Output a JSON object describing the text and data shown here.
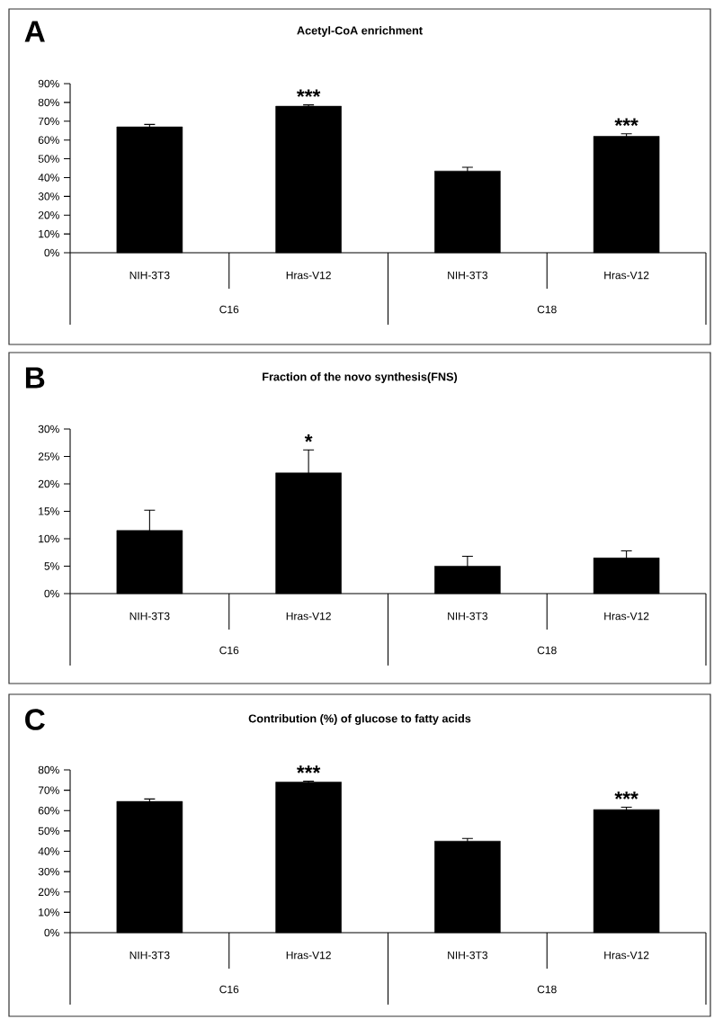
{
  "chart_data": [
    {
      "type": "bar",
      "title": "Acetyl-CoA enrichment",
      "categories": [
        "NIH-3T3",
        "Hras-V12",
        "NIH-3T3",
        "Hras-V12"
      ],
      "values": [
        67,
        78,
        43.5,
        62
      ],
      "errors": [
        1.3,
        0.7,
        2,
        1.3
      ],
      "color": "#000000",
      "ylim": [
        0,
        90
      ],
      "yticks": [
        {
          "value": 0,
          "label": "0%"
        },
        {
          "value": 10,
          "label": "10%"
        },
        {
          "value": 20,
          "label": "20%"
        },
        {
          "value": 30,
          "label": "30%"
        },
        {
          "value": 40,
          "label": "40%"
        },
        {
          "value": 50,
          "label": "50%"
        },
        {
          "value": 60,
          "label": "60%"
        },
        {
          "value": 70,
          "label": "70%"
        },
        {
          "value": 80,
          "label": "80%"
        },
        {
          "value": 90,
          "label": "90%"
        }
      ],
      "annotations": [
        "A",
        "C16",
        "C18",
        "***",
        "***"
      ]
    },
    {
      "type": "bar",
      "title": "Fraction of  the novo synthesis(FNS)",
      "categories": [
        "NIH-3T3",
        "Hras-V12",
        "NIH-3T3",
        "Hras-V12"
      ],
      "values": [
        11.5,
        22,
        5,
        6.5
      ],
      "errors": [
        3.7,
        4.2,
        1.8,
        1.3
      ],
      "color": "#000000",
      "ylim": [
        0,
        30
      ],
      "yticks": [
        {
          "value": 0,
          "label": "0%"
        },
        {
          "value": 5,
          "label": "5%"
        },
        {
          "value": 10,
          "label": "10%"
        },
        {
          "value": 15,
          "label": "15%"
        },
        {
          "value": 20,
          "label": "20%"
        },
        {
          "value": 25,
          "label": "25%"
        },
        {
          "value": 30,
          "label": "30%"
        }
      ],
      "annotations": [
        "B",
        "C16",
        "C18",
        "*"
      ]
    },
    {
      "type": "bar",
      "title": "Contribution (%) of glucose to fatty acids",
      "categories": [
        "NIH-3T3",
        "Hras-V12",
        "NIH-3T3",
        "Hras-V12"
      ],
      "values": [
        64.5,
        74,
        45,
        60.5
      ],
      "errors": [
        1.2,
        0.5,
        1.3,
        1.2
      ],
      "color": "#000000",
      "ylim": [
        0,
        80
      ],
      "yticks": [
        {
          "value": 0,
          "label": "0%"
        },
        {
          "value": 10,
          "label": "10%"
        },
        {
          "value": 20,
          "label": "20%"
        },
        {
          "value": 30,
          "label": "30%"
        },
        {
          "value": 40,
          "label": "40%"
        },
        {
          "value": 50,
          "label": "50%"
        },
        {
          "value": 60,
          "label": "60%"
        },
        {
          "value": 70,
          "label": "70%"
        },
        {
          "value": 80,
          "label": "80%"
        }
      ],
      "annotations": [
        "C",
        "C16",
        "C18",
        "***",
        "***"
      ]
    }
  ]
}
